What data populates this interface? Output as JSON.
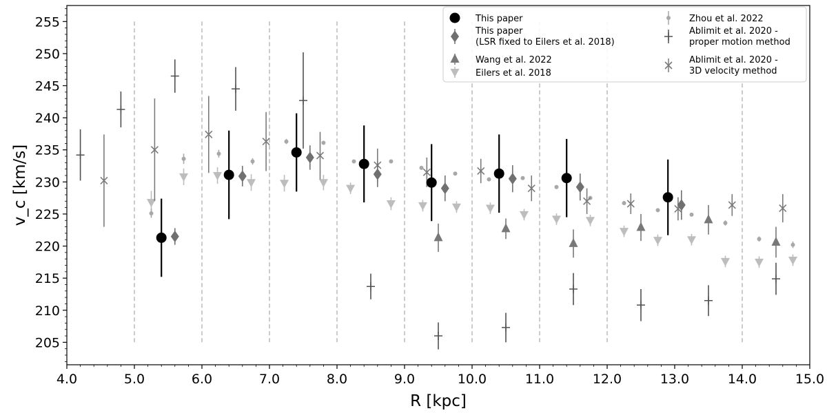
{
  "chart_data": {
    "type": "scatter",
    "title": "",
    "xlabel": "R [kpc]",
    "ylabel": "v_c [km/s]",
    "xlim": [
      4.0,
      15.0
    ],
    "ylim": [
      201.5,
      257.5
    ],
    "xticks": [
      "4.0",
      "5.0",
      "6.0",
      "7.0",
      "8.0",
      "9.0",
      "10.0",
      "11.0",
      "12.0",
      "13.0",
      "14.0",
      "15.0"
    ],
    "yticks": [
      "205",
      "210",
      "215",
      "220",
      "225",
      "230",
      "235",
      "240",
      "245",
      "250",
      "255"
    ],
    "grid": false,
    "legend_position": "top-right",
    "bin_edges": [
      5,
      6,
      7,
      8,
      9,
      10,
      11,
      12,
      14
    ],
    "series": [
      {
        "name": "This paper",
        "marker": "circle",
        "color": "#000000",
        "points": [
          {
            "x": 5.4,
            "y": 221.3,
            "err": 6.1
          },
          {
            "x": 6.4,
            "y": 231.1,
            "err": 6.9
          },
          {
            "x": 7.4,
            "y": 234.6,
            "err": 6.1
          },
          {
            "x": 8.4,
            "y": 232.8,
            "err": 6.0
          },
          {
            "x": 9.4,
            "y": 229.9,
            "err": 6.0
          },
          {
            "x": 10.4,
            "y": 231.3,
            "err": 6.1
          },
          {
            "x": 11.4,
            "y": 230.6,
            "err": 6.1
          },
          {
            "x": 12.9,
            "y": 227.6,
            "err": 5.9
          }
        ]
      },
      {
        "name": "This paper (LSR fixed to Eilers et al. 2018)",
        "legend_lines": [
          "This paper",
          "(LSR fixed to Eilers et al. 2018)"
        ],
        "marker": "diamond",
        "color": "#707070",
        "points": [
          {
            "x": 5.6,
            "y": 221.5,
            "err": 1.3
          },
          {
            "x": 6.6,
            "y": 230.9,
            "err": 1.6
          },
          {
            "x": 7.6,
            "y": 233.8,
            "err": 1.9
          },
          {
            "x": 8.6,
            "y": 231.2,
            "err": 2.0
          },
          {
            "x": 9.6,
            "y": 229.0,
            "err": 2.0
          },
          {
            "x": 10.6,
            "y": 230.5,
            "err": 2.1
          },
          {
            "x": 11.6,
            "y": 229.2,
            "err": 2.1
          },
          {
            "x": 13.1,
            "y": 226.4,
            "err": 2.3
          }
        ]
      },
      {
        "name": "Wang et al. 2022",
        "marker": "triangle-up",
        "color": "#787878",
        "points": [
          {
            "x": 9.5,
            "y": 221.3,
            "err": 2.2
          },
          {
            "x": 10.5,
            "y": 222.7,
            "err": 1.6
          },
          {
            "x": 11.5,
            "y": 220.4,
            "err": 2.2
          },
          {
            "x": 12.5,
            "y": 222.9,
            "err": 2.1
          },
          {
            "x": 13.5,
            "y": 224.1,
            "err": 2.3
          },
          {
            "x": 14.5,
            "y": 220.6,
            "err": 2.4
          }
        ]
      },
      {
        "name": "Eilers et al. 2018",
        "marker": "triangle-down",
        "color": "#bdbdbd",
        "points": [
          {
            "x": 5.25,
            "y": 226.8,
            "err": 1.8
          },
          {
            "x": 5.73,
            "y": 230.8,
            "err": 1.3
          },
          {
            "x": 6.23,
            "y": 231.0,
            "err": 1.3
          },
          {
            "x": 6.73,
            "y": 229.9,
            "err": 1.3
          },
          {
            "x": 7.22,
            "y": 229.8,
            "err": 1.3
          },
          {
            "x": 7.8,
            "y": 229.9,
            "err": 1.2
          },
          {
            "x": 8.2,
            "y": 229.0,
            "err": 0.9
          },
          {
            "x": 8.8,
            "y": 226.6,
            "err": 1.0
          },
          {
            "x": 9.27,
            "y": 226.3,
            "err": 0.9
          },
          {
            "x": 9.77,
            "y": 226.1,
            "err": 0.9
          },
          {
            "x": 10.27,
            "y": 225.9,
            "err": 0.9
          },
          {
            "x": 10.77,
            "y": 224.9,
            "err": 0.9
          },
          {
            "x": 11.25,
            "y": 224.2,
            "err": 0.9
          },
          {
            "x": 11.75,
            "y": 224.0,
            "err": 0.9
          },
          {
            "x": 12.25,
            "y": 222.3,
            "err": 0.9
          },
          {
            "x": 12.75,
            "y": 220.9,
            "err": 0.9
          },
          {
            "x": 13.25,
            "y": 221.0,
            "err": 0.9
          },
          {
            "x": 13.75,
            "y": 217.6,
            "err": 0.9
          },
          {
            "x": 14.25,
            "y": 217.5,
            "err": 0.9
          },
          {
            "x": 14.75,
            "y": 217.8,
            "err": 0.9
          }
        ]
      },
      {
        "name": "Zhou et al. 2022",
        "marker": "small-circle",
        "color": "#a8a8a8",
        "points": [
          {
            "x": 5.25,
            "y": 225.1,
            "err": 0.7
          },
          {
            "x": 5.73,
            "y": 233.6,
            "err": 0.8
          },
          {
            "x": 6.25,
            "y": 234.4,
            "err": 0.6
          },
          {
            "x": 6.75,
            "y": 233.2,
            "err": 0.5
          },
          {
            "x": 7.25,
            "y": 236.3,
            "err": 0.4
          },
          {
            "x": 7.8,
            "y": 236.1,
            "err": 0.3
          },
          {
            "x": 8.25,
            "y": 233.2,
            "err": 0.2
          },
          {
            "x": 8.8,
            "y": 233.2,
            "err": 0.3
          },
          {
            "x": 9.25,
            "y": 232.2,
            "err": 0.3
          },
          {
            "x": 9.75,
            "y": 231.3,
            "err": 0.3
          },
          {
            "x": 10.25,
            "y": 230.4,
            "err": 0.3
          },
          {
            "x": 10.75,
            "y": 230.6,
            "err": 0.3
          },
          {
            "x": 11.25,
            "y": 229.2,
            "err": 0.3
          },
          {
            "x": 11.75,
            "y": 227.5,
            "err": 0.3
          },
          {
            "x": 12.25,
            "y": 226.7,
            "err": 0.3
          },
          {
            "x": 12.75,
            "y": 225.6,
            "err": 0.3
          },
          {
            "x": 13.25,
            "y": 224.9,
            "err": 0.3
          },
          {
            "x": 13.75,
            "y": 223.6,
            "err": 0.4
          },
          {
            "x": 14.25,
            "y": 221.1,
            "err": 0.4
          },
          {
            "x": 14.75,
            "y": 220.2,
            "err": 0.5
          }
        ]
      },
      {
        "name": "Ablimit et al. 2020 - proper motion method",
        "legend_lines": [
          "Ablimit et al. 2020 -",
          "proper motion method"
        ],
        "marker": "plus",
        "color": "#505050",
        "points": [
          {
            "x": 4.2,
            "y": 234.2,
            "err": 4.0
          },
          {
            "x": 4.8,
            "y": 241.3,
            "err": 2.8
          },
          {
            "x": 5.6,
            "y": 246.5,
            "err": 2.6
          },
          {
            "x": 6.5,
            "y": 244.5,
            "err": 3.4
          },
          {
            "x": 7.5,
            "y": 242.7,
            "err": 7.5
          },
          {
            "x": 8.5,
            "y": 213.7,
            "err": 2.0
          },
          {
            "x": 9.5,
            "y": 206.0,
            "err": 2.1
          },
          {
            "x": 10.5,
            "y": 207.3,
            "err": 2.3
          },
          {
            "x": 11.5,
            "y": 213.3,
            "err": 2.5
          },
          {
            "x": 12.5,
            "y": 210.8,
            "err": 2.5
          },
          {
            "x": 13.5,
            "y": 211.5,
            "err": 2.4
          },
          {
            "x": 14.5,
            "y": 214.9,
            "err": 2.5
          }
        ]
      },
      {
        "name": "Ablimit et al. 2020 - 3D velocity method",
        "legend_lines": [
          "Ablimit et al. 2020 -",
          "3D velocity method"
        ],
        "marker": "x",
        "color": "#7a7a7a",
        "points": [
          {
            "x": 4.55,
            "y": 230.2,
            "err": 7.2
          },
          {
            "x": 5.3,
            "y": 235.0,
            "err": 8.0
          },
          {
            "x": 6.1,
            "y": 237.4,
            "err": 6.0
          },
          {
            "x": 6.95,
            "y": 236.3,
            "err": 4.6
          },
          {
            "x": 7.75,
            "y": 234.1,
            "err": 3.7
          },
          {
            "x": 8.6,
            "y": 232.6,
            "err": 2.6
          },
          {
            "x": 9.33,
            "y": 231.5,
            "err": 2.3
          },
          {
            "x": 10.13,
            "y": 231.7,
            "err": 1.9
          },
          {
            "x": 10.88,
            "y": 229.0,
            "err": 2.0
          },
          {
            "x": 11.7,
            "y": 227.0,
            "err": 2.0
          },
          {
            "x": 12.35,
            "y": 226.6,
            "err": 1.6
          },
          {
            "x": 13.05,
            "y": 225.8,
            "err": 1.8
          },
          {
            "x": 13.85,
            "y": 226.4,
            "err": 1.7
          },
          {
            "x": 14.6,
            "y": 225.9,
            "err": 2.2
          }
        ]
      }
    ]
  }
}
